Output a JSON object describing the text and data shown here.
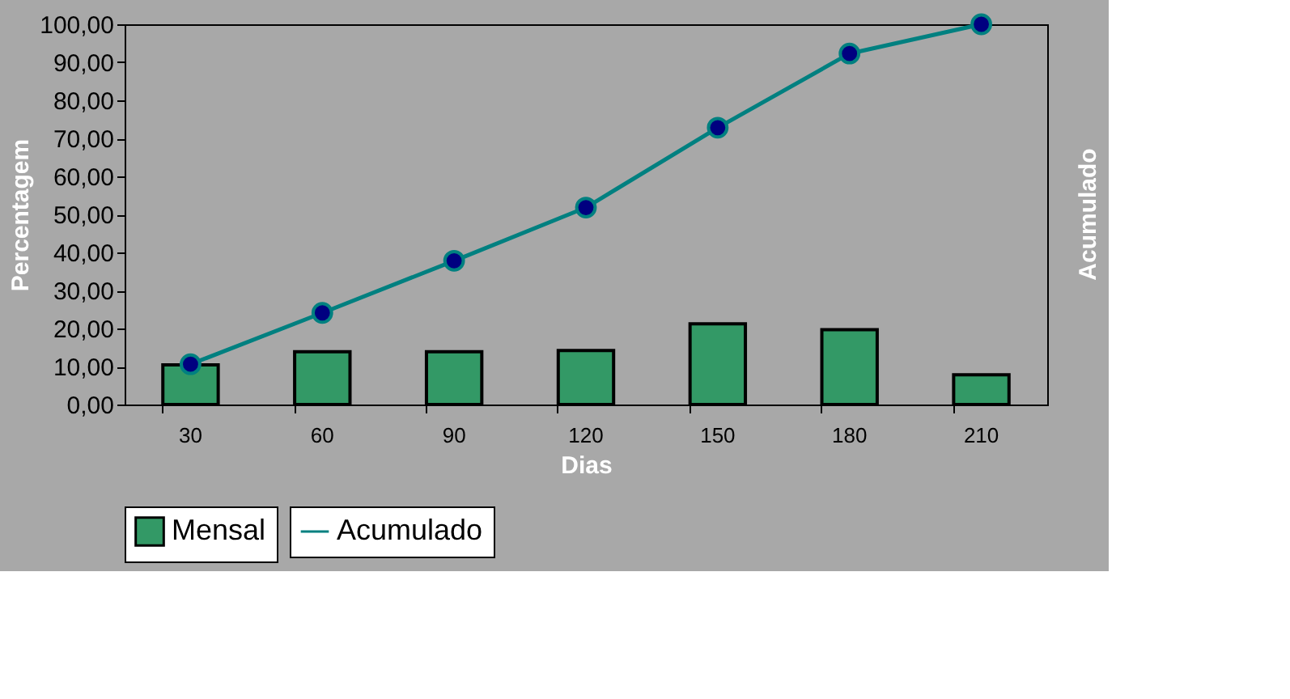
{
  "chart_data": {
    "type": "bar",
    "xlabel": "Dias",
    "ylabel": "Percentagem",
    "y2label": "Acumulado",
    "categories": [
      "30",
      "60",
      "90",
      "120",
      "150",
      "180",
      "210"
    ],
    "series": [
      {
        "name": "Mensal",
        "type": "bar",
        "color": "#339966",
        "values": [
          10.4,
          13.9,
          13.9,
          14.2,
          21.2,
          19.7,
          7.8
        ]
      },
      {
        "name": "Acumulado",
        "type": "line",
        "color": "#008080",
        "marker": "circle",
        "values": [
          10.6,
          24.1,
          37.8,
          51.8,
          72.8,
          92.3,
          100
        ]
      }
    ],
    "ylim": [
      0,
      100
    ],
    "yticks": [
      {
        "value": 0,
        "label": "0,00"
      },
      {
        "value": 10,
        "label": "10,00"
      },
      {
        "value": 20,
        "label": "20,00"
      },
      {
        "value": 30,
        "label": "30,00"
      },
      {
        "value": 40,
        "label": "40,00"
      },
      {
        "value": 50,
        "label": "50,00"
      },
      {
        "value": 60,
        "label": "60,00"
      },
      {
        "value": 70,
        "label": "70,00"
      },
      {
        "value": 80,
        "label": "80,00"
      },
      {
        "value": 90,
        "label": "90,00"
      },
      {
        "value": 100,
        "label": "100,00"
      }
    ],
    "grid": false,
    "legend": "bottom"
  }
}
